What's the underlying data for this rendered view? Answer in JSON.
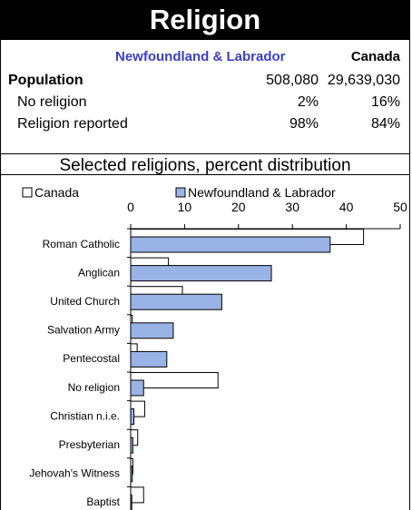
{
  "title": "Religion",
  "summary": {
    "col_headers": [
      "Newfoundland & Labrador",
      "Canada"
    ],
    "rows": [
      {
        "label": "Population",
        "nl": "508,080",
        "canada": "29,639,030"
      },
      {
        "label": "No religion",
        "nl": "2%",
        "canada": "16%"
      },
      {
        "label": "Religion reported",
        "nl": "98%",
        "canada": "84%"
      }
    ],
    "colors": {
      "nl_header": "#3b3fc4"
    }
  },
  "chart_data": {
    "type": "bar",
    "orientation": "horizontal",
    "title": "Selected religions, percent distribution",
    "categories": [
      "Roman Catholic",
      "Anglican",
      "United Church",
      "Salvation Army",
      "Pentecostal",
      "No religion",
      "Christian n.i.e.",
      "Presbyterian",
      "Jehovah's Witness",
      "Baptist"
    ],
    "series": [
      {
        "name": "Canada",
        "color": "#ffffff",
        "values": [
          43.2,
          7.0,
          9.6,
          0.3,
          1.2,
          16.2,
          2.6,
          1.3,
          0.4,
          2.4
        ]
      },
      {
        "name": "Newfoundland & Labrador",
        "color": "#99b3e6",
        "values": [
          37.0,
          26.1,
          16.9,
          7.9,
          6.7,
          2.4,
          0.6,
          0.4,
          0.3,
          0.2
        ]
      }
    ],
    "xlim": [
      0,
      50
    ],
    "xticks": [
      0,
      10,
      20,
      30,
      40,
      50
    ],
    "legend_position": "top",
    "grid": false
  }
}
